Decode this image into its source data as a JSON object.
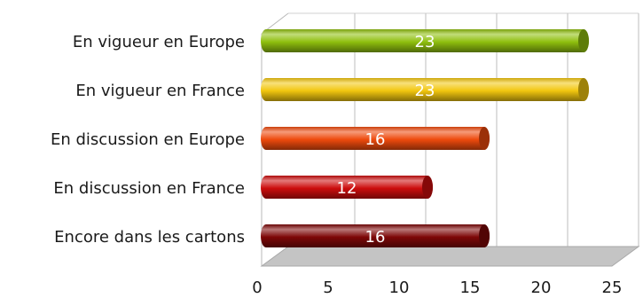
{
  "chart_data": {
    "type": "bar",
    "orientation": "horizontal",
    "title": "",
    "xlabel": "",
    "ylabel": "",
    "categories": [
      "En vigueur en Europe",
      "En vigueur en France",
      "En discussion en Europe",
      "En discussion en France",
      "Encore dans les cartons"
    ],
    "values": [
      23,
      23,
      16,
      12,
      16
    ],
    "data_labels": [
      "23",
      "23",
      "16",
      "12",
      "16"
    ],
    "bar_colors": [
      "#8fbf0e",
      "#f2c60f",
      "#ee4a0d",
      "#cc0d0d",
      "#7d0707"
    ],
    "x_ticks": [
      0,
      5,
      10,
      15,
      20,
      25
    ],
    "x_tick_labels": [
      "0",
      "5",
      "10",
      "15",
      "20",
      "25"
    ],
    "xlim": [
      0,
      25
    ],
    "grid": "vertical",
    "legend": "none",
    "style": "3d-cylinder"
  }
}
